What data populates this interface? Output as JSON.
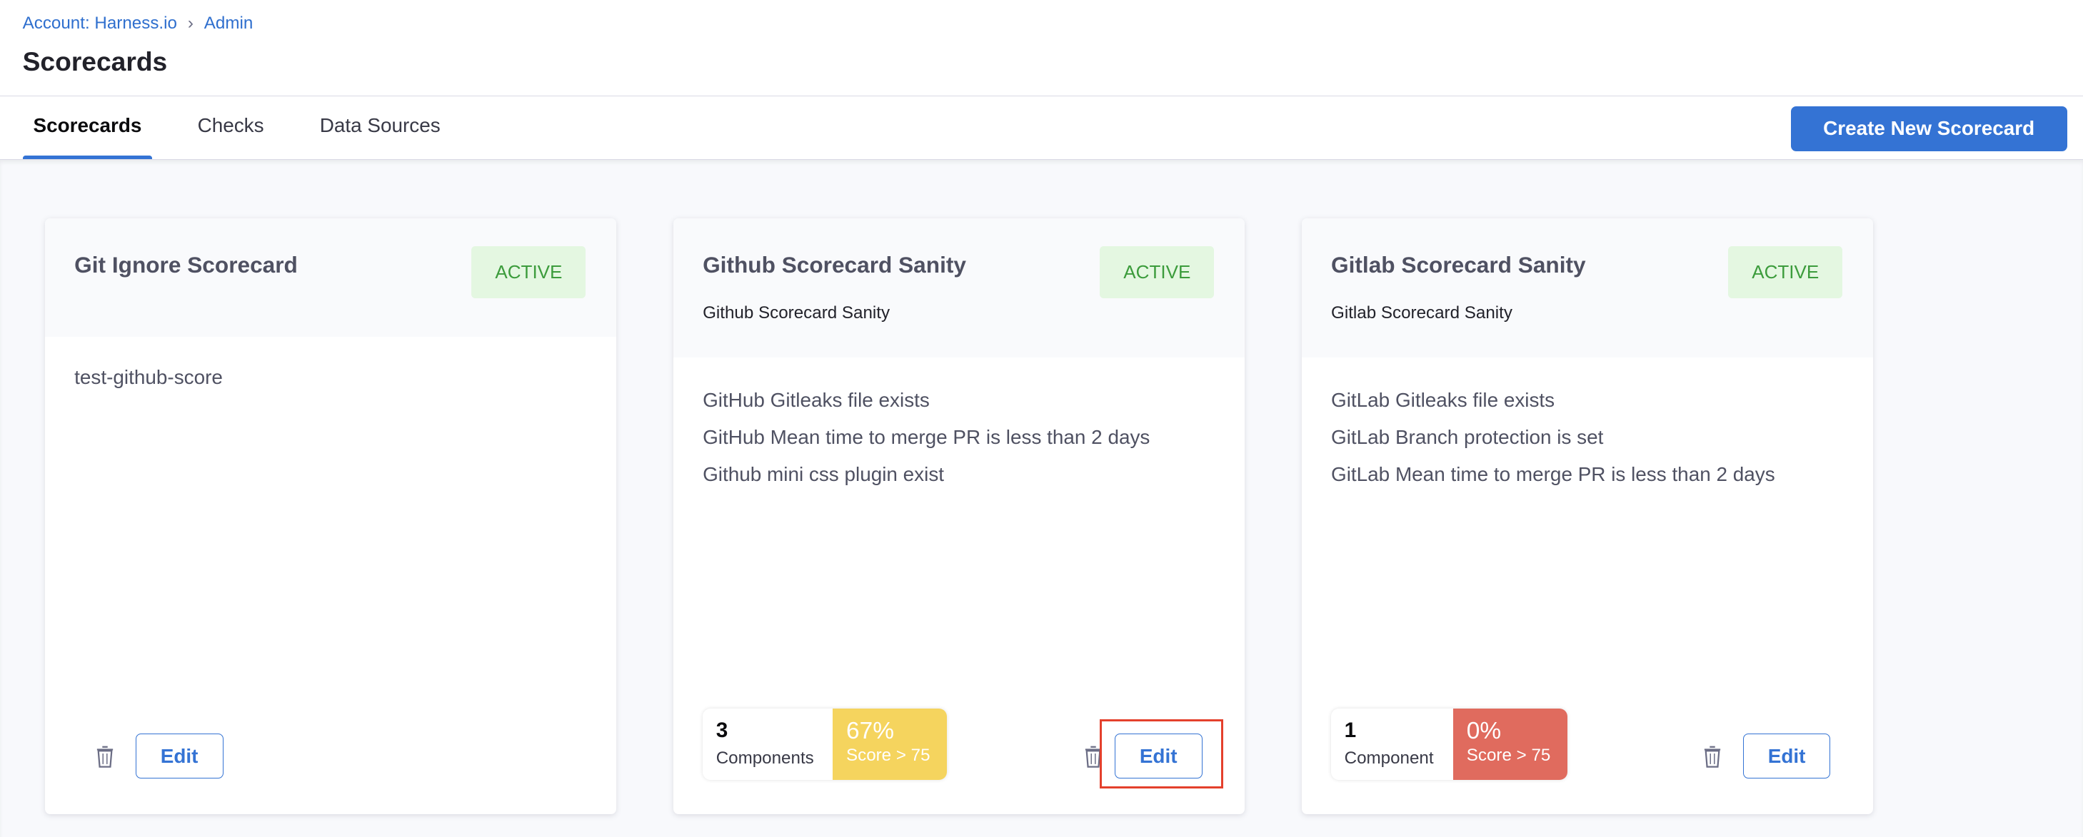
{
  "breadcrumb": {
    "items": [
      "Account: Harness.io",
      "Admin"
    ]
  },
  "page": {
    "title": "Scorecards"
  },
  "tabs": [
    {
      "label": "Scorecards",
      "active": true
    },
    {
      "label": "Checks"
    },
    {
      "label": "Data Sources"
    }
  ],
  "toolbar": {
    "create_label": "Create New Scorecard"
  },
  "colors": {
    "accent": "#3473d4",
    "active_badge_bg": "#e4f7e1",
    "active_badge_text": "#3c9c3c",
    "score_warn": "#f5d45e",
    "score_bad": "#e06b5e",
    "highlight": "#e4402c"
  },
  "cards": [
    {
      "title": "Git Ignore Scorecard",
      "status": "ACTIVE",
      "subtitle": "",
      "checks": [
        "test-github-score"
      ],
      "edit_label": "Edit"
    },
    {
      "title": "Github Scorecard Sanity",
      "status": "ACTIVE",
      "subtitle": "Github Scorecard Sanity",
      "checks": [
        "GitHub Gitleaks file exists",
        "GitHub Mean time to merge PR is less than 2 days",
        "Github mini css plugin exist"
      ],
      "components": "3",
      "components_label": "Components",
      "score": "67%",
      "score_label": "Score > 75",
      "score_color": "#f5d45e",
      "edit_label": "Edit",
      "highlighted": true
    },
    {
      "title": "Gitlab Scorecard Sanity",
      "status": "ACTIVE",
      "subtitle": "Gitlab Scorecard Sanity",
      "checks": [
        "GitLab Gitleaks file exists",
        "GitLab Branch protection is set",
        "GitLab Mean time to merge PR is less than 2 days"
      ],
      "components": "1",
      "components_label": "Component",
      "score": "0%",
      "score_label": "Score > 75",
      "score_color": "#e06b5e",
      "edit_label": "Edit"
    }
  ]
}
